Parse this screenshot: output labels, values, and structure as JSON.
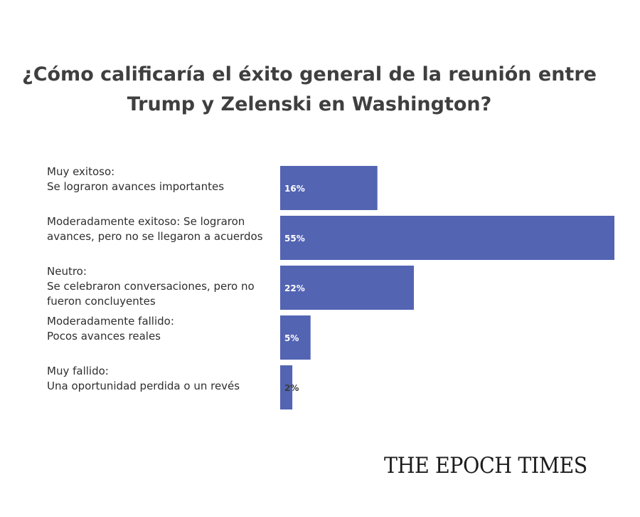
{
  "header": {
    "title_line_1": "¿Cómo calificaría el éxito general de la reunión entre",
    "title_line_2": "Trump y Zelenski en Washington?"
  },
  "branding": {
    "logo_text": "THE EPOCH TIMES"
  },
  "colors": {
    "bar": "#5364b3",
    "text": "#2e2e2e",
    "title": "#3f3f3f"
  },
  "chart_data": {
    "type": "bar",
    "orientation": "horizontal",
    "title": "¿Cómo calificaría el éxito general de la reunión entre Trump y Zelenski en Washington?",
    "categories": [
      [
        "Muy exitoso:",
        "Se lograron avances importantes"
      ],
      [
        "Moderadamente exitoso: Se lograron",
        "avances, pero no se llegaron a acuerdos"
      ],
      [
        "Neutro:",
        "Se celebraron conversaciones, pero no",
        "fueron concluyentes"
      ],
      [
        "Moderadamente fallido:",
        "Pocos avances reales"
      ],
      [
        "Muy fallido:",
        "Una oportunidad perdida o un revés"
      ]
    ],
    "values": [
      16,
      55,
      22,
      5,
      2
    ],
    "value_labels": [
      "16%",
      "55%",
      "22%",
      "5%",
      "2%"
    ],
    "unit": "%",
    "xlim": [
      0,
      55
    ],
    "grid": false,
    "legend": "none"
  }
}
